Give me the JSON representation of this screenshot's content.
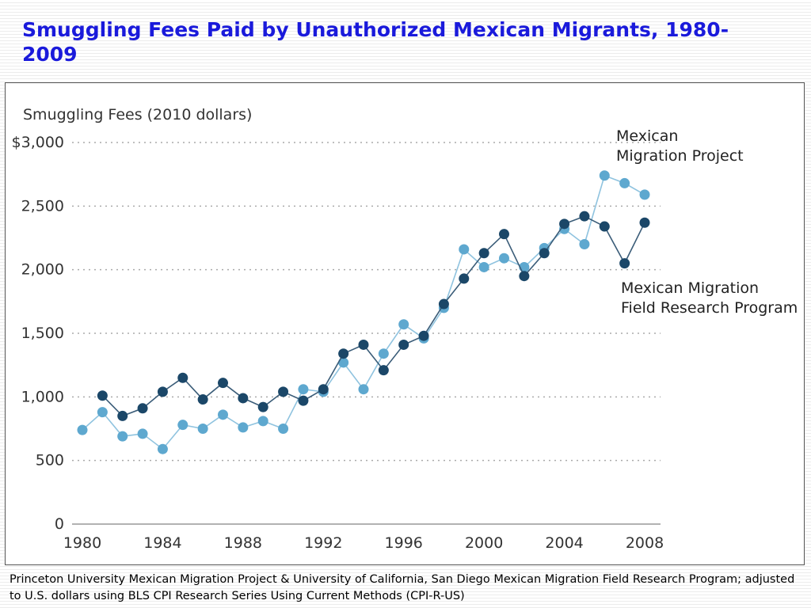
{
  "title": "Smuggling Fees Paid by Unauthorized Mexican Migrants, 1980-2009",
  "source": "Princeton University Mexican Migration Project & University of California, San Diego Mexican Migration Field Research Program; adjusted to U.S. dollars using BLS CPI Research Series Using Current Methods (CPI-R-US)",
  "chart_data": {
    "type": "line",
    "title": "",
    "ylabel": "Smuggling Fees (2010 dollars)",
    "xlabel": "",
    "xlim": [
      1980,
      2008
    ],
    "ylim": [
      0,
      3000
    ],
    "grid": true,
    "y_ticks": [
      {
        "value": 0,
        "label": "0"
      },
      {
        "value": 500,
        "label": "500"
      },
      {
        "value": 1000,
        "label": "1,000"
      },
      {
        "value": 1500,
        "label": "1,500"
      },
      {
        "value": 2000,
        "label": "2,000"
      },
      {
        "value": 2500,
        "label": "2,500"
      },
      {
        "value": 3000,
        "label": "$3,000"
      }
    ],
    "x_ticks": [
      {
        "value": 1980,
        "label": "1980"
      },
      {
        "value": 1984,
        "label": "1984"
      },
      {
        "value": 1988,
        "label": "1988"
      },
      {
        "value": 1992,
        "label": "1992"
      },
      {
        "value": 1996,
        "label": "1996"
      },
      {
        "value": 2000,
        "label": "2000"
      },
      {
        "value": 2004,
        "label": "2004"
      },
      {
        "value": 2008,
        "label": "2008"
      }
    ],
    "series": [
      {
        "name": "Mexican Migration Project",
        "label_lines": [
          "Mexican",
          "Migration Project"
        ],
        "color": "#5ea8cf",
        "line_color": "#8fc3df",
        "x": [
          1980,
          1981,
          1982,
          1983,
          1984,
          1985,
          1986,
          1987,
          1988,
          1989,
          1990,
          1991,
          1992,
          1993,
          1994,
          1995,
          1996,
          1997,
          1998,
          1999,
          2000,
          2001,
          2002,
          2003,
          2004,
          2005,
          2006,
          2007,
          2008
        ],
        "values": [
          740,
          880,
          690,
          710,
          590,
          780,
          750,
          860,
          760,
          810,
          750,
          1060,
          1040,
          1270,
          1060,
          1340,
          1570,
          1460,
          1700,
          2160,
          2020,
          2090,
          2020,
          2170,
          2320,
          2200,
          2740,
          2680,
          2590
        ]
      },
      {
        "name": "Mexican Migration Field Research Program",
        "label_lines": [
          "Mexican Migration",
          "Field Research Program"
        ],
        "color": "#1b4768",
        "line_color": "#3a5c78",
        "x": [
          1981,
          1982,
          1983,
          1984,
          1985,
          1986,
          1987,
          1988,
          1989,
          1990,
          1991,
          1992,
          1993,
          1994,
          1995,
          1996,
          1997,
          1998,
          1999,
          2000,
          2001,
          2002,
          2003,
          2004,
          2005,
          2006,
          2007,
          2008
        ],
        "values": [
          1010,
          850,
          910,
          1040,
          1150,
          980,
          1110,
          990,
          920,
          1040,
          970,
          1060,
          1340,
          1410,
          1210,
          1410,
          1480,
          1730,
          1930,
          2130,
          2280,
          1950,
          2130,
          2360,
          2420,
          2340,
          2050,
          2370
        ]
      }
    ]
  }
}
